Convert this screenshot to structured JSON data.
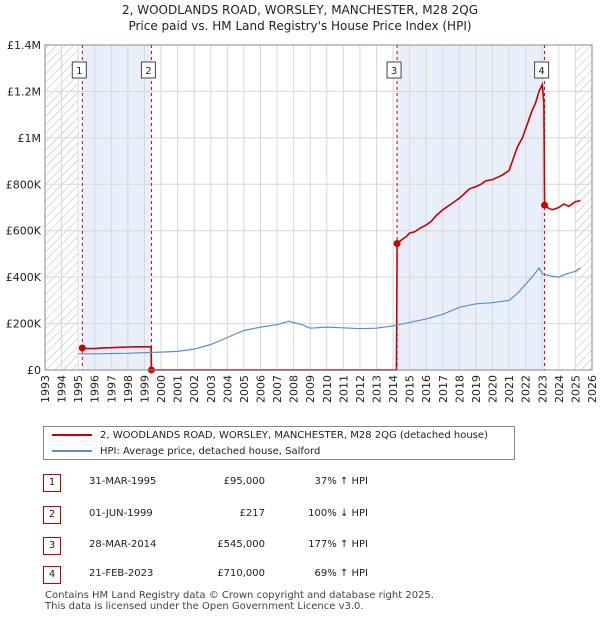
{
  "chart_data": {
    "type": "line",
    "title": "2, WOODLANDS ROAD, WORSLEY, MANCHESTER, M28 2QG",
    "subtitle": "Price paid vs. HM Land Registry's House Price Index (HPI)",
    "xlim": [
      1993,
      2026
    ],
    "ylim": [
      0,
      1400000
    ],
    "y_ticks": [
      0,
      200000,
      400000,
      600000,
      800000,
      1000000,
      1200000,
      1400000
    ],
    "y_tick_labels": [
      "£0",
      "£200K",
      "£400K",
      "£600K",
      "£800K",
      "£1M",
      "£1.2M",
      "£1.4M"
    ],
    "x_ticks": [
      1993,
      1994,
      1995,
      1996,
      1997,
      1998,
      1999,
      2000,
      2001,
      2002,
      2003,
      2004,
      2005,
      2006,
      2007,
      2008,
      2009,
      2010,
      2011,
      2012,
      2013,
      2014,
      2015,
      2016,
      2017,
      2018,
      2019,
      2020,
      2021,
      2022,
      2023,
      2024,
      2025,
      2026
    ],
    "shaded_ranges": [
      [
        1995.25,
        1999.42
      ],
      [
        2014.24,
        2023.14
      ]
    ],
    "hatched_ranges": [
      [
        1993,
        1995.0
      ],
      [
        2025.0,
        2026
      ]
    ],
    "series": [
      {
        "name": "2, WOODLANDS ROAD, WORSLEY, MANCHESTER, M28 2QG (detached house)",
        "color": "#cc0000",
        "x": [
          1995.25,
          1995.5,
          1996,
          1996.5,
          1997,
          1997.5,
          1998,
          1998.5,
          1999,
          1999.4,
          1999.42,
          2000,
          2005,
          2010,
          2014.2,
          2014.24,
          2014.5,
          2014.8,
          2015,
          2015.3,
          2015.6,
          2016,
          2016.3,
          2016.6,
          2017,
          2017.3,
          2017.6,
          2018,
          2018.3,
          2018.6,
          2019,
          2019.3,
          2019.6,
          2020,
          2020.3,
          2020.6,
          2021,
          2021.2,
          2021.5,
          2021.8,
          2022,
          2022.2,
          2022.4,
          2022.6,
          2022.8,
          2023.0,
          2023.1,
          2023.14,
          2023.3,
          2023.6,
          2024,
          2024.3,
          2024.6,
          2025,
          2025.3
        ],
        "values": [
          95000,
          92000,
          92000,
          95000,
          96000,
          98000,
          99000,
          100000,
          100000,
          100000,
          217,
          217,
          217,
          217,
          217,
          545000,
          560000,
          575000,
          590000,
          595000,
          610000,
          625000,
          640000,
          665000,
          690000,
          705000,
          720000,
          740000,
          760000,
          780000,
          790000,
          800000,
          815000,
          820000,
          830000,
          840000,
          860000,
          900000,
          960000,
          1000000,
          1040000,
          1080000,
          1120000,
          1150000,
          1200000,
          1230000,
          1150000,
          710000,
          700000,
          690000,
          700000,
          715000,
          705000,
          725000,
          730000
        ]
      },
      {
        "name": "HPI: Average price, detached house, Salford",
        "color": "#5b8fcc",
        "x": [
          1995.0,
          1996,
          1997,
          1998,
          1999,
          2000,
          2001,
          2002,
          2003,
          2004,
          2005,
          2006,
          2007,
          2007.7,
          2008.5,
          2009,
          2010,
          2011,
          2012,
          2013,
          2014,
          2015,
          2016,
          2017,
          2018,
          2019,
          2020,
          2021,
          2021.5,
          2022,
          2022.5,
          2022.8,
          2023,
          2023.5,
          2024,
          2024.5,
          2025,
          2025.3
        ],
        "values": [
          70000,
          70000,
          71000,
          72000,
          75000,
          77000,
          80000,
          90000,
          110000,
          140000,
          170000,
          185000,
          195000,
          210000,
          195000,
          180000,
          185000,
          182000,
          178000,
          180000,
          190000,
          205000,
          220000,
          240000,
          270000,
          285000,
          290000,
          300000,
          330000,
          370000,
          410000,
          440000,
          415000,
          405000,
          400000,
          415000,
          425000,
          440000
        ]
      }
    ],
    "sale_markers": [
      {
        "label": "1",
        "x": 1995.25,
        "value": 95000
      },
      {
        "label": "2",
        "x": 1999.42,
        "value": 217
      },
      {
        "label": "3",
        "x": 2014.24,
        "value": 545000
      },
      {
        "label": "4",
        "x": 2023.14,
        "value": 710000
      }
    ],
    "legend_position": "bottom"
  },
  "legend": {
    "property": "2, WOODLANDS ROAD, WORSLEY, MANCHESTER, M28 2QG (detached house)",
    "hpi": "HPI: Average price, detached house, Salford"
  },
  "transactions": [
    {
      "num": "1",
      "date": "31-MAR-1995",
      "price": "£95,000",
      "hpi": "37% ↑ HPI"
    },
    {
      "num": "2",
      "date": "01-JUN-1999",
      "price": "£217",
      "hpi": "100% ↓ HPI"
    },
    {
      "num": "3",
      "date": "28-MAR-2014",
      "price": "£545,000",
      "hpi": "177% ↑ HPI"
    },
    {
      "num": "4",
      "date": "21-FEB-2023",
      "price": "£710,000",
      "hpi": "69% ↑ HPI"
    }
  ],
  "footer": {
    "line1": "Contains HM Land Registry data © Crown copyright and database right 2025.",
    "line2": "This data is licensed under the Open Government Licence v3.0."
  }
}
